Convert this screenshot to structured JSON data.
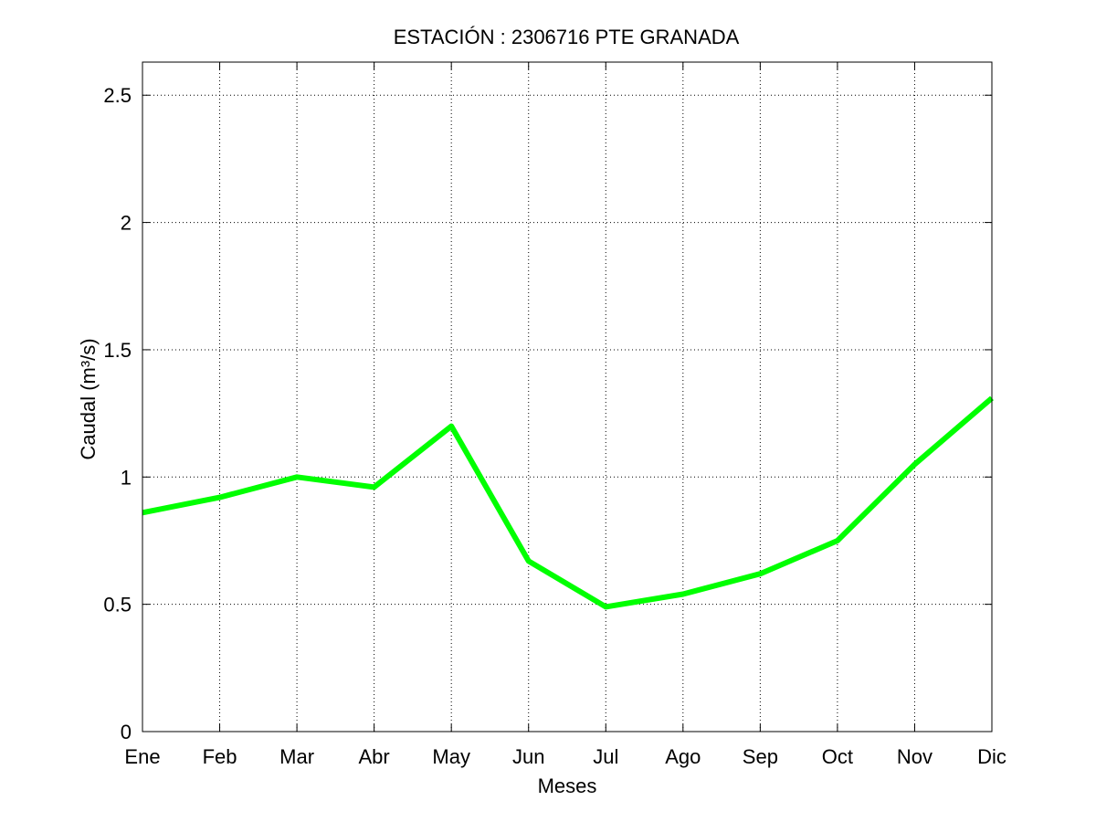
{
  "chart_data": {
    "type": "line",
    "title": "ESTACIÓN :  2306716  PTE GRANADA",
    "xlabel": "Meses",
    "ylabel": "Caudal (m³/s)",
    "categories": [
      "Ene",
      "Feb",
      "Mar",
      "Abr",
      "May",
      "Jun",
      "Jul",
      "Ago",
      "Sep",
      "Oct",
      "Nov",
      "Dic"
    ],
    "series": [
      {
        "values": [
          0.86,
          0.92,
          1.0,
          0.96,
          1.2,
          0.67,
          0.49,
          0.54,
          0.62,
          0.75,
          1.05,
          1.31
        ],
        "color": "#00ff00"
      }
    ],
    "ylim": [
      0,
      2.63
    ],
    "yticks": [
      0,
      0.5,
      1,
      1.5,
      2,
      2.5
    ],
    "ytick_labels": [
      "0",
      "0.5",
      "1",
      "1.5",
      "2",
      "2.5"
    ],
    "grid": true,
    "grid_style": "dotted",
    "legend": "none"
  }
}
